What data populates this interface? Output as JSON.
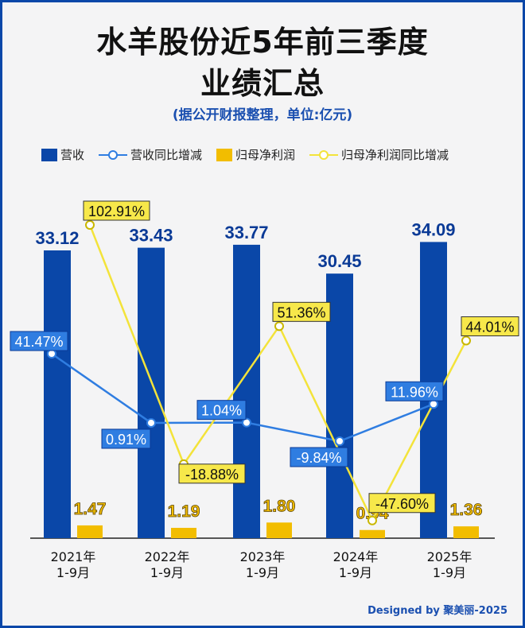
{
  "title_line1": "水羊股份近5年前三季度",
  "title_line2": "业绩汇总",
  "subtitle": "(据公开财报整理，单位:亿元)",
  "credit": "Designed by 聚美丽-2025",
  "colors": {
    "revenue": "#0a47a8",
    "revenue_growth": "#2f7de1",
    "profit": "#f2bd00",
    "profit_growth": "#f3e33a",
    "label_bg_blue": "#2f7de1",
    "label_bg_yellow": "#f7e84a"
  },
  "chart_data": {
    "type": "bar",
    "categories": [
      [
        "2021年",
        "1-9月"
      ],
      [
        "2022年",
        "1-9月"
      ],
      [
        "2023年",
        "1-9月"
      ],
      [
        "2024年",
        "1-9月"
      ],
      [
        "2025年",
        "1-9月"
      ]
    ],
    "legend": [
      "营收",
      "营收同比增减",
      "归母净利润",
      "归母净利润同比增减"
    ],
    "legend_placement": "top",
    "grid": false,
    "series": [
      {
        "name": "营收",
        "type": "bar",
        "values": [
          33.12,
          33.43,
          33.77,
          30.45,
          34.09
        ],
        "labels": [
          "33.12",
          "33.43",
          "33.77",
          "30.45",
          "34.09"
        ]
      },
      {
        "name": "归母净利润",
        "type": "bar",
        "values": [
          1.47,
          1.19,
          1.8,
          0.94,
          1.36
        ],
        "labels": [
          "1.47",
          "1.19",
          "1.80",
          "0.94",
          "1.36"
        ]
      },
      {
        "name": "营收同比增减",
        "type": "line",
        "values": [
          41.47,
          0.91,
          1.04,
          -9.84,
          11.96
        ],
        "labels": [
          "41.47%",
          "0.91%",
          "1.04%",
          "-9.84%",
          "11.96%"
        ]
      },
      {
        "name": "归母净利润同比增减",
        "type": "line",
        "values": [
          102.91,
          -18.88,
          51.36,
          -47.6,
          44.01
        ],
        "labels": [
          "102.91%",
          "-18.88%",
          "51.36%",
          "-47.60%",
          "44.01%"
        ]
      }
    ]
  }
}
